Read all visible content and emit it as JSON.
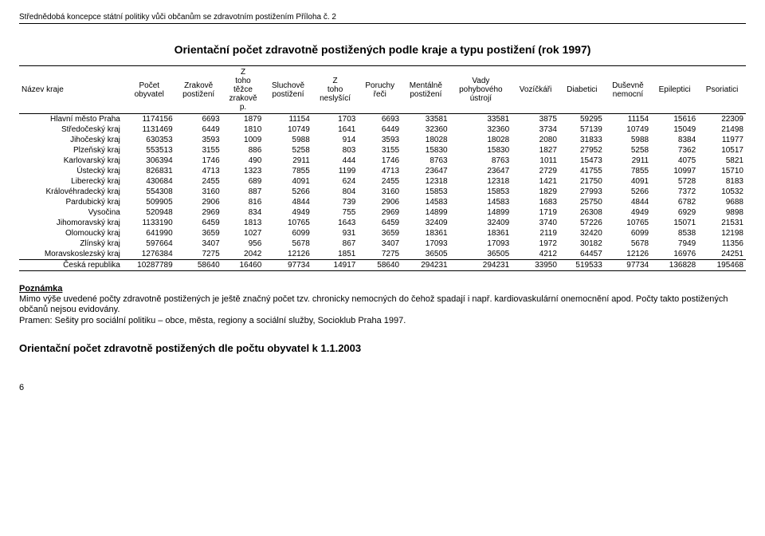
{
  "header": "Střednědobá koncepce státní politiky vůči občanům se zdravotním postižením Příloha č. 2",
  "title": "Orientační počet zdravotně postižených podle kraje a typu postižení (rok 1997)",
  "columns": [
    "Název kraje",
    "Počet obyvatel",
    "Zrakově postižení",
    "Z toho těžce zrakově p.",
    "Sluchově postižení",
    "Z toho neslyšící",
    "Poruchy řeči",
    "Mentálně postižení",
    "Vady pohybového ústrojí",
    "Vozíčkáři",
    "Diabetici",
    "Duševně nemocní",
    "Epileptici",
    "Psoriatici"
  ],
  "rows": [
    {
      "name": "Hlavní město Praha",
      "v": [
        "1174156",
        "6693",
        "1879",
        "11154",
        "1703",
        "6693",
        "33581",
        "33581",
        "3875",
        "59295",
        "11154",
        "15616",
        "22309"
      ]
    },
    {
      "name": "Středočeský kraj",
      "v": [
        "1131469",
        "6449",
        "1810",
        "10749",
        "1641",
        "6449",
        "32360",
        "32360",
        "3734",
        "57139",
        "10749",
        "15049",
        "21498"
      ]
    },
    {
      "name": "Jihočeský kraj",
      "v": [
        "630353",
        "3593",
        "1009",
        "5988",
        "914",
        "3593",
        "18028",
        "18028",
        "2080",
        "31833",
        "5988",
        "8384",
        "11977"
      ]
    },
    {
      "name": "Plzeňský kraj",
      "v": [
        "553513",
        "3155",
        "886",
        "5258",
        "803",
        "3155",
        "15830",
        "15830",
        "1827",
        "27952",
        "5258",
        "7362",
        "10517"
      ]
    },
    {
      "name": "Karlovarský kraj",
      "v": [
        "306394",
        "1746",
        "490",
        "2911",
        "444",
        "1746",
        "8763",
        "8763",
        "1011",
        "15473",
        "2911",
        "4075",
        "5821"
      ]
    },
    {
      "name": "Ústecký kraj",
      "v": [
        "826831",
        "4713",
        "1323",
        "7855",
        "1199",
        "4713",
        "23647",
        "23647",
        "2729",
        "41755",
        "7855",
        "10997",
        "15710"
      ]
    },
    {
      "name": "Liberecký kraj",
      "v": [
        "430684",
        "2455",
        "689",
        "4091",
        "624",
        "2455",
        "12318",
        "12318",
        "1421",
        "21750",
        "4091",
        "5728",
        "8183"
      ]
    },
    {
      "name": "Královéhradecký kraj",
      "v": [
        "554308",
        "3160",
        "887",
        "5266",
        "804",
        "3160",
        "15853",
        "15853",
        "1829",
        "27993",
        "5266",
        "7372",
        "10532"
      ]
    },
    {
      "name": "Pardubický kraj",
      "v": [
        "509905",
        "2906",
        "816",
        "4844",
        "739",
        "2906",
        "14583",
        "14583",
        "1683",
        "25750",
        "4844",
        "6782",
        "9688"
      ]
    },
    {
      "name": "Vysočina",
      "v": [
        "520948",
        "2969",
        "834",
        "4949",
        "755",
        "2969",
        "14899",
        "14899",
        "1719",
        "26308",
        "4949",
        "6929",
        "9898"
      ]
    },
    {
      "name": "Jihomoravský kraj",
      "v": [
        "1133190",
        "6459",
        "1813",
        "10765",
        "1643",
        "6459",
        "32409",
        "32409",
        "3740",
        "57226",
        "10765",
        "15071",
        "21531"
      ]
    },
    {
      "name": "Olomoucký kraj",
      "v": [
        "641990",
        "3659",
        "1027",
        "6099",
        "931",
        "3659",
        "18361",
        "18361",
        "2119",
        "32420",
        "6099",
        "8538",
        "12198"
      ]
    },
    {
      "name": "Zlínský kraj",
      "v": [
        "597664",
        "3407",
        "956",
        "5678",
        "867",
        "3407",
        "17093",
        "17093",
        "1972",
        "30182",
        "5678",
        "7949",
        "11356"
      ]
    },
    {
      "name": "Moravskoslezský kraj",
      "v": [
        "1276384",
        "7275",
        "2042",
        "12126",
        "1851",
        "7275",
        "36505",
        "36505",
        "4212",
        "64457",
        "12126",
        "16976",
        "24251"
      ]
    }
  ],
  "total": {
    "name": "Česká republika",
    "v": [
      "10287789",
      "58640",
      "16460",
      "97734",
      "14917",
      "58640",
      "294231",
      "294231",
      "33950",
      "519533",
      "97734",
      "136828",
      "195468"
    ]
  },
  "note": {
    "title": "Poznámka",
    "body": "Mimo výše uvedené počty zdravotně postižených je ještě značný počet tzv. chronicky nemocných do čehož spadají i např. kardiovaskulární onemocnění apod. Počty takto postižených občanů nejsou evidovány.",
    "source": "Pramen: Sešity pro sociální politiku – obce, města, regiony a sociální služby, Socioklub Praha 1997."
  },
  "subtitle": "Orientační počet zdravotně postižených dle počtu obyvatel k 1.1.2003",
  "page": "6"
}
